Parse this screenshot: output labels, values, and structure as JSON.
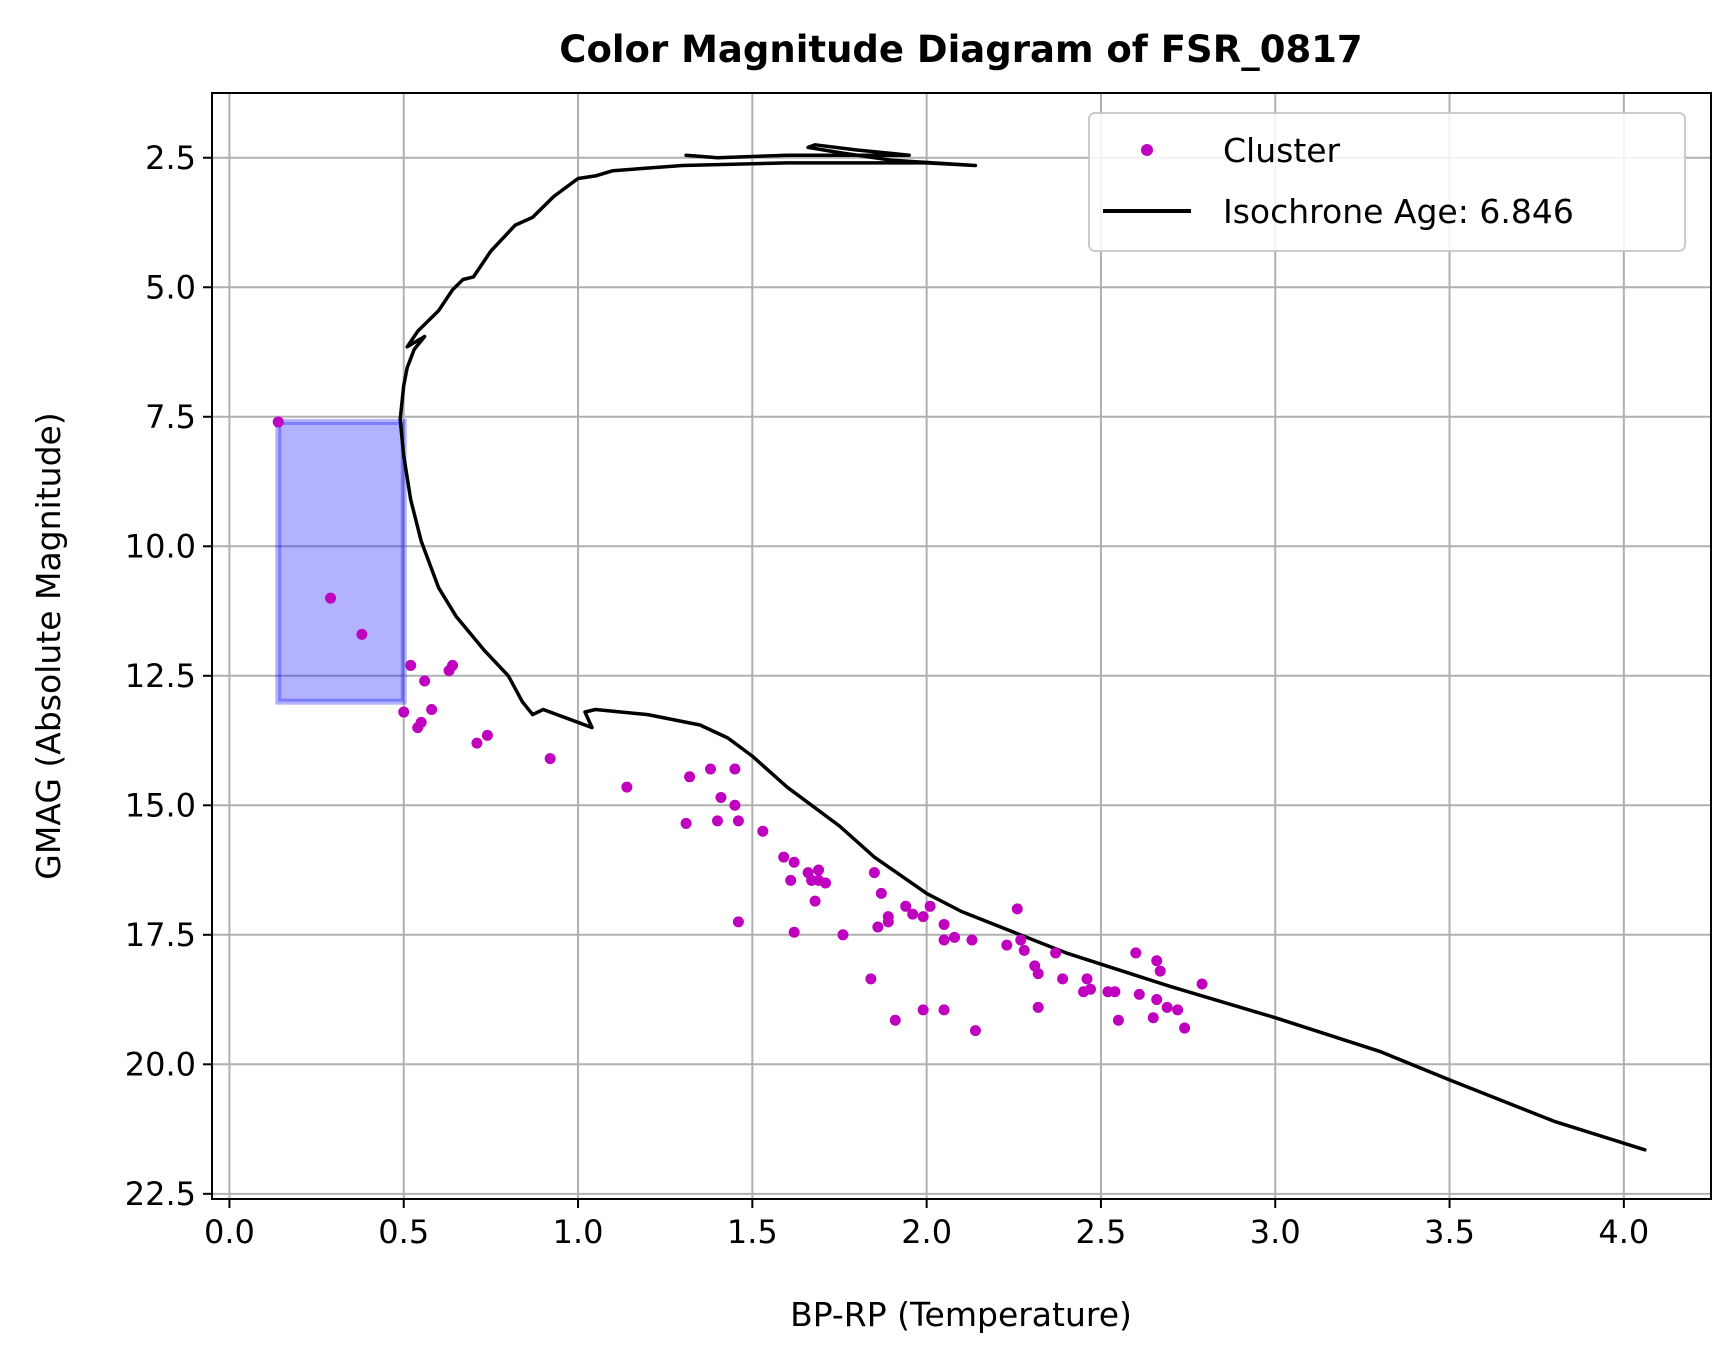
{
  "chart_data": {
    "type": "scatter",
    "title": "Color Magnitude Diagram of FSR_0817",
    "xlabel": "BP-RP (Temperature)",
    "ylabel": "GMAG (Absolute Magnitude)",
    "xlim": [
      -0.05,
      4.25
    ],
    "ylim": [
      22.6,
      1.25
    ],
    "y_inverted": true,
    "grid": true,
    "legend_position": "top-right",
    "x_ticks": [
      "0.0",
      "0.5",
      "1.0",
      "1.5",
      "2.0",
      "2.5",
      "3.0",
      "3.5",
      "4.0"
    ],
    "y_ticks": [
      "2.5",
      "5.0",
      "7.5",
      "10.0",
      "12.5",
      "15.0",
      "17.5",
      "20.0",
      "22.5"
    ],
    "colors": {
      "cluster": "#bf00bf",
      "isochrone": "#000000",
      "selection_box": "#0000ff"
    },
    "series": [
      {
        "name": "Cluster",
        "kind": "scatter",
        "points": [
          [
            0.14,
            7.6
          ],
          [
            0.29,
            11.0
          ],
          [
            0.38,
            11.7
          ],
          [
            0.5,
            13.2
          ],
          [
            0.52,
            12.3
          ],
          [
            0.54,
            13.5
          ],
          [
            0.55,
            13.4
          ],
          [
            0.56,
            12.6
          ],
          [
            0.58,
            13.15
          ],
          [
            0.63,
            12.4
          ],
          [
            0.64,
            12.3
          ],
          [
            0.71,
            13.8
          ],
          [
            0.74,
            13.65
          ],
          [
            0.92,
            14.1
          ],
          [
            1.14,
            14.65
          ],
          [
            1.31,
            15.35
          ],
          [
            1.32,
            14.45
          ],
          [
            1.38,
            14.3
          ],
          [
            1.4,
            15.3
          ],
          [
            1.41,
            14.85
          ],
          [
            1.45,
            15.0
          ],
          [
            1.45,
            14.3
          ],
          [
            1.46,
            15.3
          ],
          [
            1.46,
            17.25
          ],
          [
            1.53,
            15.5
          ],
          [
            1.59,
            16.0
          ],
          [
            1.61,
            16.45
          ],
          [
            1.62,
            16.1
          ],
          [
            1.62,
            17.45
          ],
          [
            1.66,
            16.3
          ],
          [
            1.67,
            16.45
          ],
          [
            1.68,
            16.85
          ],
          [
            1.69,
            16.25
          ],
          [
            1.69,
            16.45
          ],
          [
            1.71,
            16.5
          ],
          [
            1.76,
            17.5
          ],
          [
            1.84,
            18.35
          ],
          [
            1.85,
            16.3
          ],
          [
            1.86,
            17.35
          ],
          [
            1.87,
            16.7
          ],
          [
            1.89,
            17.25
          ],
          [
            1.89,
            17.15
          ],
          [
            1.91,
            19.15
          ],
          [
            1.94,
            16.95
          ],
          [
            1.96,
            17.1
          ],
          [
            1.99,
            17.15
          ],
          [
            1.99,
            18.95
          ],
          [
            2.01,
            16.95
          ],
          [
            2.05,
            17.3
          ],
          [
            2.05,
            17.6
          ],
          [
            2.05,
            18.95
          ],
          [
            2.08,
            17.55
          ],
          [
            2.13,
            17.6
          ],
          [
            2.14,
            19.35
          ],
          [
            2.23,
            17.7
          ],
          [
            2.26,
            17.0
          ],
          [
            2.27,
            17.6
          ],
          [
            2.28,
            17.8
          ],
          [
            2.31,
            18.1
          ],
          [
            2.32,
            18.25
          ],
          [
            2.32,
            18.9
          ],
          [
            2.37,
            17.85
          ],
          [
            2.39,
            18.35
          ],
          [
            2.45,
            18.6
          ],
          [
            2.46,
            18.35
          ],
          [
            2.47,
            18.55
          ],
          [
            2.52,
            18.6
          ],
          [
            2.54,
            18.6
          ],
          [
            2.55,
            19.15
          ],
          [
            2.6,
            17.85
          ],
          [
            2.61,
            18.65
          ],
          [
            2.65,
            19.1
          ],
          [
            2.66,
            18.0
          ],
          [
            2.66,
            18.75
          ],
          [
            2.67,
            18.2
          ],
          [
            2.69,
            18.9
          ],
          [
            2.72,
            18.95
          ],
          [
            2.74,
            19.3
          ],
          [
            2.79,
            18.45
          ]
        ]
      },
      {
        "name": "Isochrone Age: 6.846",
        "kind": "line",
        "points": [
          [
            4.06,
            21.65
          ],
          [
            3.8,
            21.1
          ],
          [
            3.5,
            20.3
          ],
          [
            3.3,
            19.75
          ],
          [
            3.0,
            19.1
          ],
          [
            2.7,
            18.5
          ],
          [
            2.4,
            17.85
          ],
          [
            2.1,
            17.05
          ],
          [
            2.0,
            16.7
          ],
          [
            1.85,
            16.0
          ],
          [
            1.75,
            15.4
          ],
          [
            1.6,
            14.65
          ],
          [
            1.5,
            14.05
          ],
          [
            1.43,
            13.7
          ],
          [
            1.35,
            13.45
          ],
          [
            1.2,
            13.25
          ],
          [
            1.05,
            13.15
          ],
          [
            1.02,
            13.2
          ],
          [
            1.04,
            13.5
          ],
          [
            0.98,
            13.35
          ],
          [
            0.9,
            13.15
          ],
          [
            0.87,
            13.25
          ],
          [
            0.84,
            13.0
          ],
          [
            0.8,
            12.5
          ],
          [
            0.73,
            12.0
          ],
          [
            0.65,
            11.35
          ],
          [
            0.6,
            10.8
          ],
          [
            0.55,
            9.9
          ],
          [
            0.52,
            9.1
          ],
          [
            0.5,
            8.25
          ],
          [
            0.49,
            7.55
          ],
          [
            0.5,
            6.9
          ],
          [
            0.51,
            6.55
          ],
          [
            0.53,
            6.2
          ],
          [
            0.56,
            5.95
          ],
          [
            0.51,
            6.15
          ],
          [
            0.54,
            5.85
          ],
          [
            0.6,
            5.45
          ],
          [
            0.64,
            5.05
          ],
          [
            0.67,
            4.85
          ],
          [
            0.7,
            4.8
          ],
          [
            0.75,
            4.3
          ],
          [
            0.82,
            3.8
          ],
          [
            0.87,
            3.65
          ],
          [
            0.93,
            3.25
          ],
          [
            1.0,
            2.9
          ],
          [
            1.05,
            2.85
          ],
          [
            1.1,
            2.75
          ],
          [
            1.3,
            2.65
          ],
          [
            1.6,
            2.6
          ],
          [
            1.8,
            2.6
          ],
          [
            2.0,
            2.6
          ],
          [
            2.14,
            2.65
          ],
          [
            1.9,
            2.55
          ],
          [
            1.75,
            2.4
          ],
          [
            1.66,
            2.3
          ],
          [
            1.68,
            2.25
          ],
          [
            1.8,
            2.35
          ],
          [
            1.95,
            2.45
          ],
          [
            1.8,
            2.45
          ],
          [
            1.6,
            2.45
          ],
          [
            1.4,
            2.5
          ],
          [
            1.31,
            2.45
          ]
        ]
      }
    ],
    "selection_box": {
      "x_range": [
        0.14,
        0.5
      ],
      "y_range": [
        7.6,
        13.0
      ]
    }
  }
}
